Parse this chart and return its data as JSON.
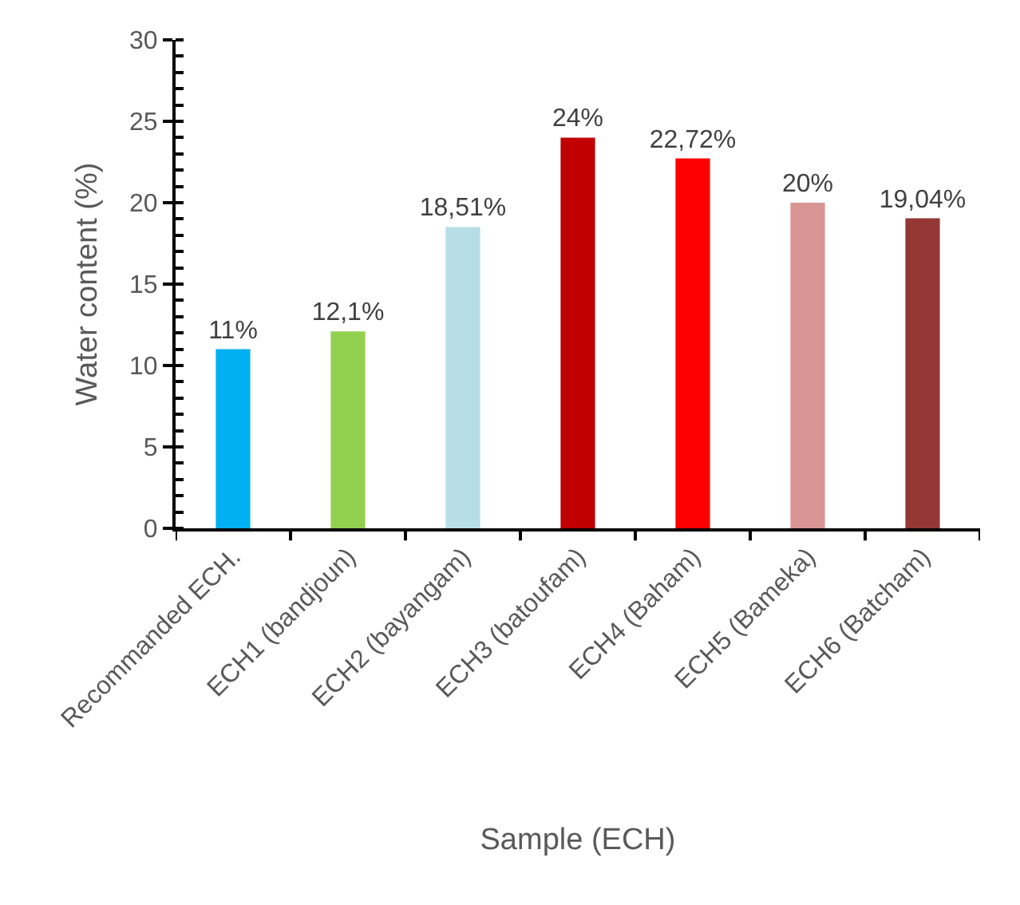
{
  "chart_data": {
    "type": "bar",
    "xlabel": "Sample (ECH)",
    "ylabel": "Water content (%)",
    "categories": [
      "Recommanded ECH.",
      "ECH1 (bandjoun)",
      "ECH2 (bayangam)",
      "ECH3 (batoufam)",
      "ECH4 (Baham)",
      "ECH5 (Bameka)",
      "ECH6 (Batcham)"
    ],
    "values": [
      11,
      12.1,
      18.51,
      24,
      22.72,
      20,
      19.04
    ],
    "colors": [
      "#00b0f0",
      "#92d050",
      "#b7dde8",
      "#c00000",
      "#ff0000",
      "#d99594",
      "#953735"
    ],
    "value_labels": [
      "11%",
      "12,1%",
      "18,51%",
      "24%",
      "22,72%",
      "20%",
      "19,04%"
    ],
    "ylim": [
      0,
      30
    ],
    "yticks": [
      0,
      5,
      10,
      15,
      20,
      25,
      30
    ]
  }
}
